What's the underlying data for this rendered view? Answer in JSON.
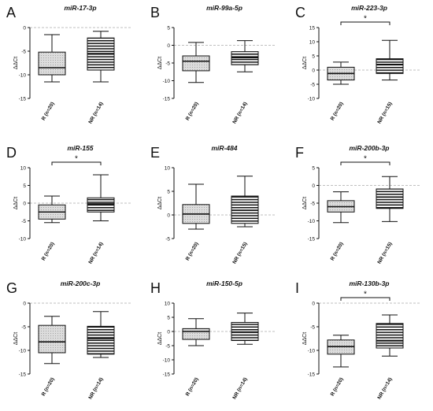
{
  "chart_data": [
    {
      "letter": "A",
      "title": "miR-17-3p",
      "type": "box",
      "ylabel": "ΔΔCt",
      "yticks": [
        0,
        -5,
        -10,
        -15
      ],
      "ylim": [
        -15,
        0
      ],
      "categories": [
        "R (n=20)",
        "NR (n=14)"
      ],
      "boxes": [
        {
          "min": -11.5,
          "q1": -10,
          "median": -8.5,
          "q3": -5.2,
          "max": -1.5
        },
        {
          "min": -11.5,
          "q1": -9,
          "median": -5.5,
          "q3": -2.2,
          "max": -0.8
        }
      ],
      "significant": false
    },
    {
      "letter": "B",
      "title": "miR-99a-5p",
      "type": "box",
      "ylabel": "ΔΔCt",
      "yticks": [
        5,
        0,
        -5,
        -10,
        -15
      ],
      "ylim": [
        -15,
        5
      ],
      "categories": [
        "R (n=20)",
        "NR (n=14)"
      ],
      "boxes": [
        {
          "min": -10.5,
          "q1": -7.2,
          "median": -4.5,
          "q3": -3,
          "max": 0.8
        },
        {
          "min": -7.5,
          "q1": -5.5,
          "median": -3.5,
          "q3": -1.8,
          "max": 1.3
        }
      ],
      "significant": false
    },
    {
      "letter": "C",
      "title": "miR-223-3p",
      "type": "box",
      "ylabel": "ΔΔCt",
      "yticks": [
        15,
        10,
        5,
        0,
        -5,
        -10
      ],
      "ylim": [
        -10,
        15
      ],
      "categories": [
        "R (n=20)",
        "NR (n=15)"
      ],
      "boxes": [
        {
          "min": -5,
          "q1": -3.5,
          "median": -1.2,
          "q3": 1,
          "max": 2.8
        },
        {
          "min": -3.5,
          "q1": -1.2,
          "median": 2,
          "q3": 4,
          "max": 10.5
        }
      ],
      "significant": true,
      "sig_label": "*"
    },
    {
      "letter": "D",
      "title": "miR-155",
      "type": "box",
      "ylabel": "ΔΔCt",
      "yticks": [
        10,
        5,
        0,
        -5,
        -10
      ],
      "ylim": [
        -10,
        10
      ],
      "categories": [
        "R (n=20)",
        "NR (n=14)"
      ],
      "boxes": [
        {
          "min": -5.5,
          "q1": -4.5,
          "median": -2.5,
          "q3": -0.5,
          "max": 2
        },
        {
          "min": -5,
          "q1": -2.5,
          "median": -0.2,
          "q3": 1.5,
          "max": 8
        }
      ],
      "significant": true,
      "sig_label": "*"
    },
    {
      "letter": "E",
      "title": "miR-484",
      "type": "box",
      "ylabel": "ΔΔCt",
      "yticks": [
        10,
        5,
        0,
        -5
      ],
      "ylim": [
        -5,
        10
      ],
      "categories": [
        "R (n=20)",
        "NR (n=15)"
      ],
      "boxes": [
        {
          "min": -3,
          "q1": -1.8,
          "median": 0.2,
          "q3": 2.2,
          "max": 6.5
        },
        {
          "min": -2.5,
          "q1": -1.8,
          "median": 1,
          "q3": 4,
          "max": 8.2
        }
      ],
      "significant": false
    },
    {
      "letter": "F",
      "title": "miR-200b-3p",
      "type": "box",
      "ylabel": "ΔΔCt",
      "yticks": [
        5,
        0,
        -5,
        -10,
        -15
      ],
      "ylim": [
        -15,
        5
      ],
      "categories": [
        "R (n=20)",
        "NR (n=15)"
      ],
      "boxes": [
        {
          "min": -10.5,
          "q1": -7.5,
          "median": -6,
          "q3": -4.3,
          "max": -1.8
        },
        {
          "min": -10.2,
          "q1": -6.5,
          "median": -3.3,
          "q3": -1,
          "max": 2.5
        }
      ],
      "significant": true,
      "sig_label": "*"
    },
    {
      "letter": "G",
      "title": "miR-200c-3p",
      "type": "box",
      "ylabel": "ΔΔCt",
      "yticks": [
        0,
        -5,
        -10,
        -15
      ],
      "ylim": [
        -15,
        0
      ],
      "categories": [
        "R (n=20)",
        "NR (n=14)"
      ],
      "boxes": [
        {
          "min": -12.8,
          "q1": -10.5,
          "median": -8.2,
          "q3": -4.7,
          "max": -2.8
        },
        {
          "min": -11.5,
          "q1": -10.8,
          "median": -7.5,
          "q3": -4.9,
          "max": -1.8
        }
      ],
      "significant": false
    },
    {
      "letter": "H",
      "title": "miR-150-5p",
      "type": "box",
      "ylabel": "ΔΔCt",
      "yticks": [
        10,
        5,
        0,
        -5,
        -10,
        -15
      ],
      "ylim": [
        -15,
        10
      ],
      "categories": [
        "R (n=20)",
        "NR (n=14)"
      ],
      "boxes": [
        {
          "min": -5,
          "q1": -2.8,
          "median": 0,
          "q3": 1,
          "max": 4.5
        },
        {
          "min": -4.5,
          "q1": -3.2,
          "median": -0.2,
          "q3": 3.2,
          "max": 6.5
        }
      ],
      "significant": false
    },
    {
      "letter": "I",
      "title": "miR-130b-3p",
      "type": "box",
      "ylabel": "ΔΔCt",
      "yticks": [
        0,
        -5,
        -10,
        -15
      ],
      "ylim": [
        -15,
        0
      ],
      "categories": [
        "R (n=20)",
        "NR (n=14)"
      ],
      "boxes": [
        {
          "min": -13.5,
          "q1": -10.8,
          "median": -9.2,
          "q3": -7.8,
          "max": -6.8
        },
        {
          "min": -11.2,
          "q1": -9.5,
          "median": -8,
          "q3": -4.3,
          "max": -2.5
        }
      ],
      "significant": true,
      "sig_label": "*"
    }
  ],
  "colors": {
    "reference_line": "#aaaaaa",
    "box_fill_R": "#dedede",
    "box_stroke": "#111111"
  },
  "styles": {
    "R": "dotted-fill",
    "NR": "horizontal-stripes"
  }
}
